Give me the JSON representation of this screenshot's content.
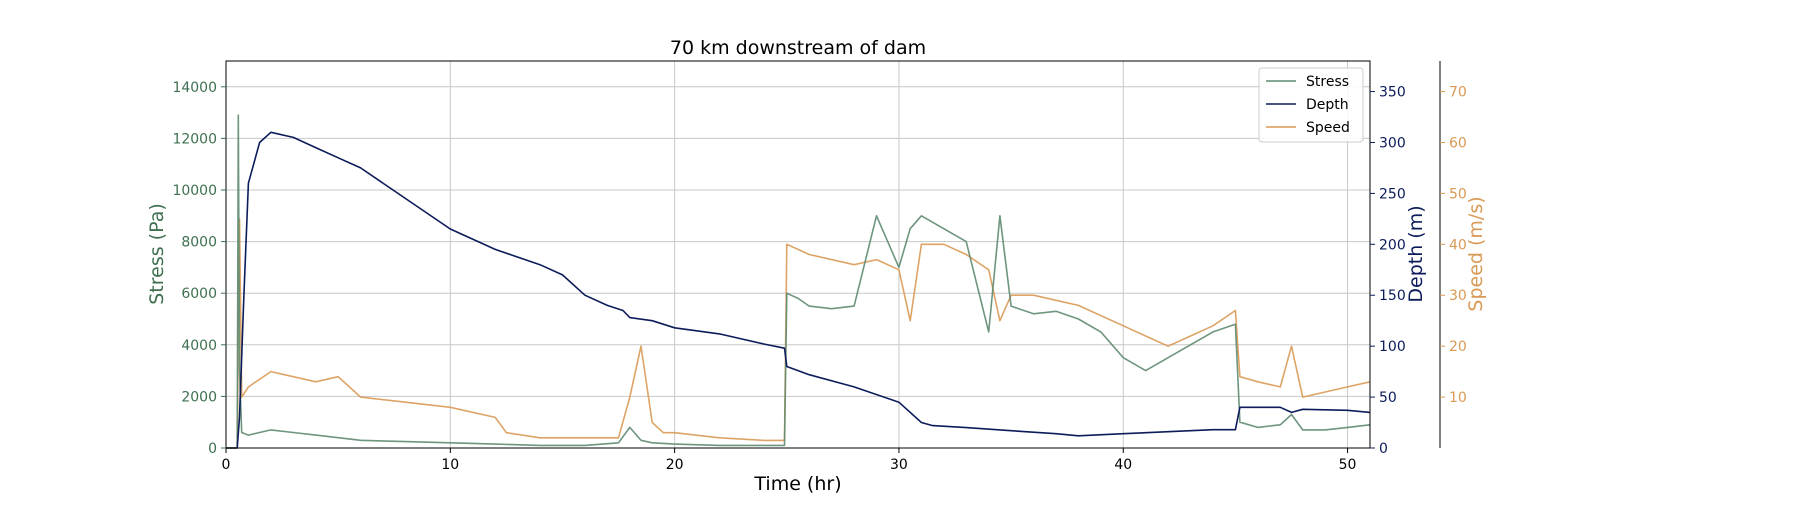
{
  "chart_data": {
    "type": "line",
    "title": "70 km downstream of dam",
    "xlabel": "Time (hr)",
    "xlim": [
      0,
      51
    ],
    "xticks": [
      0,
      10,
      20,
      30,
      40,
      50
    ],
    "grid": true,
    "legend_position": "top-right",
    "axes": [
      {
        "id": "stress",
        "label": "Stress (Pa)",
        "side": "left",
        "color": "#3e7050",
        "ylim": [
          0,
          15000
        ],
        "ticks": [
          0,
          2000,
          4000,
          6000,
          8000,
          10000,
          12000,
          14000
        ]
      },
      {
        "id": "depth",
        "label": "Depth (m)",
        "side": "right",
        "color": "#0c1c5a",
        "ylim": [
          0,
          380
        ],
        "ticks": [
          0,
          50,
          100,
          150,
          200,
          250,
          300,
          350
        ]
      },
      {
        "id": "speed",
        "label": "Speed (m/s)",
        "side": "right-outer",
        "color": "#d99a55",
        "ylim": [
          0,
          76
        ],
        "ticks": [
          10,
          20,
          30,
          40,
          50,
          60,
          70
        ]
      }
    ],
    "series": [
      {
        "name": "Stress",
        "axis": "stress",
        "color": "#5e8a70",
        "x": [
          0,
          0.5,
          0.55,
          0.6,
          0.7,
          1,
          2,
          3,
          4,
          5,
          6,
          8,
          10,
          12,
          14,
          16,
          17.5,
          18,
          18.5,
          19,
          20,
          22,
          24,
          24.9,
          25,
          25.5,
          26,
          27,
          28,
          29,
          30,
          30.5,
          31,
          32,
          33,
          34,
          34.5,
          35,
          36,
          37,
          38,
          39,
          40,
          41,
          42,
          43,
          44,
          45,
          45.2,
          46,
          47,
          47.5,
          48,
          49,
          50,
          51
        ],
        "y": [
          0,
          0,
          12900,
          3000,
          600,
          500,
          700,
          600,
          500,
          400,
          300,
          250,
          200,
          150,
          100,
          100,
          200,
          800,
          300,
          200,
          150,
          100,
          100,
          100,
          6000,
          5800,
          5500,
          5400,
          5500,
          9000,
          7000,
          8500,
          9000,
          8500,
          8000,
          4500,
          9000,
          5500,
          5200,
          5300,
          5000,
          4500,
          3500,
          3000,
          3500,
          4000,
          4500,
          4800,
          1000,
          800,
          900,
          1300,
          700,
          700,
          800,
          900
        ]
      },
      {
        "name": "Depth",
        "axis": "depth",
        "color": "#0c1c5a",
        "x": [
          0,
          0.5,
          0.6,
          0.8,
          1,
          1.5,
          2,
          3,
          4,
          5,
          6,
          8,
          10,
          12,
          14,
          15,
          16,
          17,
          17.7,
          18,
          19,
          20,
          22,
          24,
          24.9,
          25,
          26,
          28,
          30,
          31,
          31.5,
          33,
          35,
          37,
          38,
          40,
          42,
          44,
          45,
          45.2,
          47,
          47.5,
          48,
          50,
          51
        ],
        "y": [
          0,
          0,
          30,
          150,
          260,
          300,
          310,
          305,
          295,
          285,
          275,
          245,
          215,
          195,
          180,
          170,
          150,
          140,
          135,
          128,
          125,
          118,
          112,
          102,
          98,
          80,
          72,
          60,
          45,
          25,
          22,
          20,
          17,
          14,
          12,
          14,
          16,
          18,
          18,
          40,
          40,
          35,
          38,
          37,
          35
        ]
      },
      {
        "name": "Speed",
        "axis": "speed",
        "color": "#d99a55",
        "x": [
          0,
          0.5,
          0.6,
          0.7,
          1,
          2,
          3,
          4,
          5,
          6,
          8,
          10,
          12,
          12.5,
          14,
          16,
          17.5,
          18,
          18.5,
          19,
          19.5,
          20,
          22,
          24,
          24.9,
          25,
          26,
          28,
          29,
          30,
          30.5,
          31,
          32,
          33,
          34,
          34.5,
          35,
          36,
          37,
          38,
          40,
          41,
          42,
          43,
          44,
          45,
          45.2,
          46,
          47,
          47.5,
          48,
          49,
          50,
          51
        ],
        "y": [
          0,
          0,
          45,
          10,
          12,
          15,
          14,
          13,
          14,
          10,
          9,
          8,
          6,
          3,
          2,
          2,
          2,
          10,
          20,
          5,
          3,
          3,
          2,
          1.5,
          1.5,
          40,
          38,
          36,
          37,
          35,
          25,
          40,
          40,
          38,
          35,
          25,
          30,
          30,
          29,
          28,
          24,
          22,
          20,
          22,
          24,
          27,
          14,
          13,
          12,
          20,
          10,
          11,
          12,
          13
        ]
      }
    ]
  }
}
